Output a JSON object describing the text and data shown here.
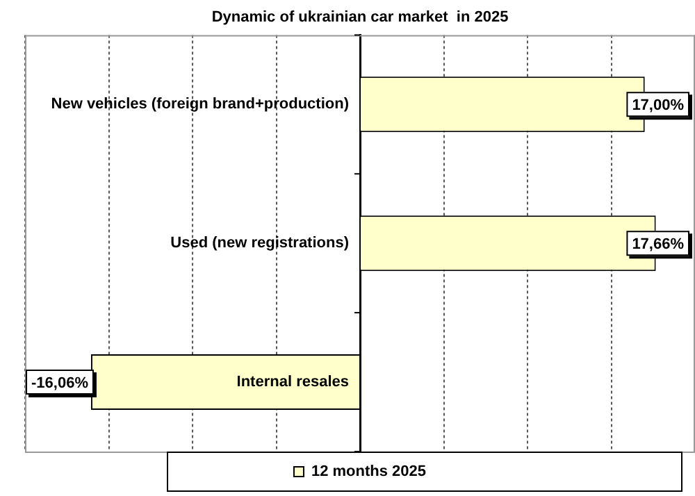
{
  "chart_data": {
    "type": "bar",
    "orientation": "horizontal",
    "title": "Dynamic of ukrainian car market  in 2025",
    "categories": [
      "New vehicles (foreign brand+production)",
      "Used (new registrations)",
      "Internal resales"
    ],
    "series": [
      {
        "name": "12 months 2025",
        "color": "#ffffcc",
        "values": [
          17.0,
          17.66,
          -16.06
        ],
        "value_labels": [
          "17,00%",
          "17,66%",
          "-16,06%"
        ]
      }
    ],
    "xlim": [
      -20,
      20
    ],
    "xticks": [
      {
        "value": -20,
        "label": null
      },
      {
        "value": -15,
        "label": null
      },
      {
        "value": -10,
        "label": null
      },
      {
        "value": -5,
        "label": null
      },
      {
        "value": 0,
        "label": null
      },
      {
        "value": 5,
        "label": null
      },
      {
        "value": 10,
        "label": null
      },
      {
        "value": 15,
        "label": null
      },
      {
        "value": 20,
        "label": null
      }
    ],
    "grid": "x",
    "legend": "bottom",
    "tick_labels": false
  }
}
